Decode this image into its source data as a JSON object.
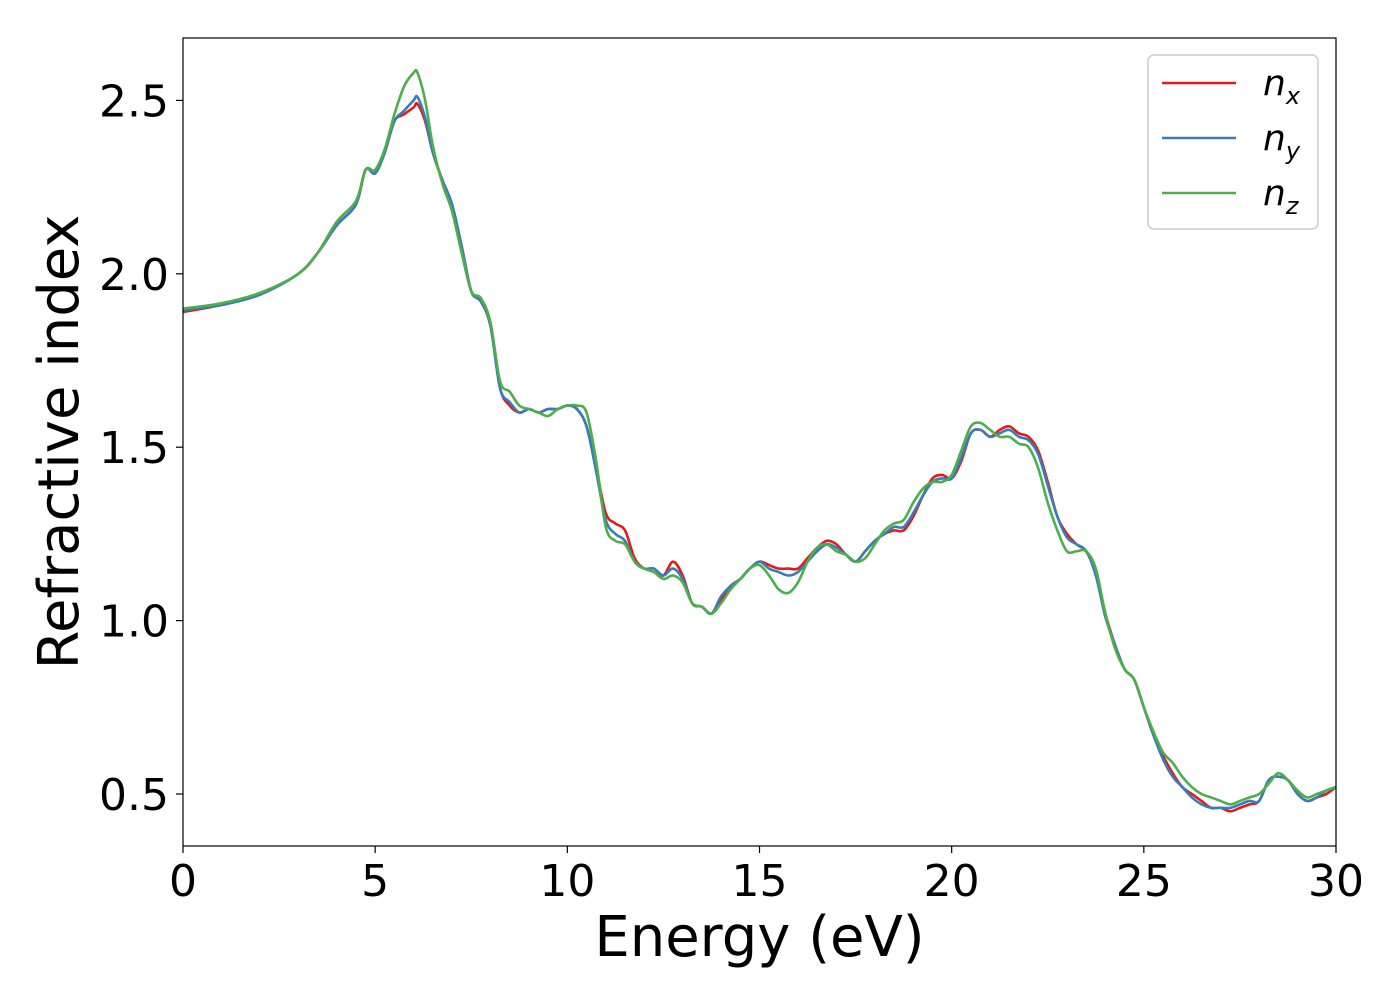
{
  "chart_data": {
    "type": "line",
    "xlabel": "Energy (eV)",
    "ylabel": "Refractive index",
    "xlim": [
      0,
      30
    ],
    "ylim": [
      0.35,
      2.68
    ],
    "xticks": [
      0,
      5,
      10,
      15,
      20,
      25,
      30
    ],
    "xtick_labels": [
      "0",
      "5",
      "10",
      "15",
      "20",
      "25",
      "30"
    ],
    "yticks": [
      0.5,
      1.0,
      1.5,
      2.0,
      2.5
    ],
    "ytick_labels": [
      "0.5",
      "1.0",
      "1.5",
      "2.0",
      "2.5"
    ],
    "grid": false,
    "legend_position": "top-right",
    "series": [
      {
        "name": "n_x",
        "legend_base": "n",
        "legend_sub": "x",
        "color": "#e41a1c",
        "x": [
          0,
          1,
          2,
          3,
          3.5,
          4,
          4.5,
          4.75,
          5,
          5.25,
          5.5,
          5.75,
          6,
          6.1,
          6.3,
          6.5,
          6.75,
          7,
          7.25,
          7.5,
          7.75,
          8,
          8.25,
          8.5,
          8.75,
          9,
          9.25,
          9.5,
          9.75,
          10,
          10.25,
          10.5,
          10.75,
          11,
          11.25,
          11.5,
          11.75,
          12,
          12.25,
          12.5,
          12.75,
          13,
          13.25,
          13.5,
          13.75,
          14,
          14.25,
          14.5,
          14.75,
          15,
          15.25,
          15.5,
          15.75,
          16,
          16.25,
          16.5,
          16.75,
          17,
          17.25,
          17.5,
          17.75,
          18,
          18.25,
          18.5,
          18.75,
          19,
          19.25,
          19.5,
          19.75,
          20,
          20.25,
          20.5,
          20.75,
          21,
          21.25,
          21.5,
          21.75,
          22,
          22.25,
          22.5,
          22.75,
          23,
          23.25,
          23.5,
          23.75,
          24,
          24.25,
          24.5,
          24.75,
          25,
          25.25,
          25.5,
          25.75,
          26,
          26.25,
          26.5,
          26.75,
          27,
          27.25,
          27.5,
          27.75,
          28,
          28.25,
          28.5,
          28.75,
          29,
          29.25,
          29.5,
          29.75,
          30
        ],
        "y": [
          1.89,
          1.91,
          1.94,
          2.0,
          2.06,
          2.14,
          2.2,
          2.3,
          2.29,
          2.35,
          2.44,
          2.46,
          2.48,
          2.49,
          2.44,
          2.35,
          2.27,
          2.2,
          2.08,
          1.95,
          1.92,
          1.85,
          1.67,
          1.62,
          1.6,
          1.61,
          1.6,
          1.61,
          1.61,
          1.62,
          1.61,
          1.56,
          1.44,
          1.31,
          1.28,
          1.26,
          1.18,
          1.15,
          1.15,
          1.13,
          1.17,
          1.13,
          1.05,
          1.04,
          1.02,
          1.06,
          1.1,
          1.12,
          1.15,
          1.17,
          1.16,
          1.15,
          1.15,
          1.15,
          1.18,
          1.21,
          1.23,
          1.22,
          1.19,
          1.17,
          1.2,
          1.23,
          1.25,
          1.26,
          1.26,
          1.3,
          1.36,
          1.41,
          1.42,
          1.41,
          1.46,
          1.54,
          1.55,
          1.53,
          1.55,
          1.56,
          1.54,
          1.53,
          1.49,
          1.4,
          1.3,
          1.25,
          1.22,
          1.2,
          1.14,
          1.02,
          0.93,
          0.86,
          0.83,
          0.75,
          0.67,
          0.61,
          0.56,
          0.52,
          0.5,
          0.48,
          0.46,
          0.46,
          0.45,
          0.46,
          0.47,
          0.48,
          0.54,
          0.55,
          0.54,
          0.5,
          0.48,
          0.49,
          0.5,
          0.52
        ]
      },
      {
        "name": "n_y",
        "legend_base": "n",
        "legend_sub": "y",
        "color": "#377eb8",
        "x": [
          0,
          1,
          2,
          3,
          3.5,
          4,
          4.5,
          4.75,
          5,
          5.25,
          5.5,
          5.75,
          6,
          6.1,
          6.3,
          6.5,
          6.75,
          7,
          7.25,
          7.5,
          7.75,
          8,
          8.25,
          8.5,
          8.75,
          9,
          9.25,
          9.5,
          9.75,
          10,
          10.25,
          10.5,
          10.75,
          11,
          11.25,
          11.5,
          11.75,
          12,
          12.25,
          12.5,
          12.75,
          13,
          13.25,
          13.5,
          13.75,
          14,
          14.25,
          14.5,
          14.75,
          15,
          15.25,
          15.5,
          15.75,
          16,
          16.25,
          16.5,
          16.75,
          17,
          17.25,
          17.5,
          17.75,
          18,
          18.25,
          18.5,
          18.75,
          19,
          19.25,
          19.5,
          19.75,
          20,
          20.25,
          20.5,
          20.75,
          21,
          21.25,
          21.5,
          21.75,
          22,
          22.25,
          22.5,
          22.75,
          23,
          23.25,
          23.5,
          23.75,
          24,
          24.25,
          24.5,
          24.75,
          25,
          25.25,
          25.5,
          25.75,
          26,
          26.25,
          26.5,
          26.75,
          27,
          27.25,
          27.5,
          27.75,
          28,
          28.25,
          28.5,
          28.75,
          29,
          29.25,
          29.5,
          29.75,
          30
        ],
        "y": [
          1.895,
          1.91,
          1.94,
          2.0,
          2.06,
          2.14,
          2.2,
          2.3,
          2.29,
          2.35,
          2.44,
          2.47,
          2.5,
          2.51,
          2.45,
          2.35,
          2.27,
          2.2,
          2.08,
          1.95,
          1.92,
          1.85,
          1.67,
          1.63,
          1.6,
          1.61,
          1.6,
          1.61,
          1.61,
          1.62,
          1.61,
          1.56,
          1.43,
          1.29,
          1.25,
          1.23,
          1.17,
          1.15,
          1.15,
          1.13,
          1.15,
          1.12,
          1.05,
          1.04,
          1.02,
          1.07,
          1.1,
          1.12,
          1.15,
          1.17,
          1.15,
          1.14,
          1.13,
          1.14,
          1.17,
          1.2,
          1.22,
          1.21,
          1.19,
          1.17,
          1.2,
          1.23,
          1.25,
          1.27,
          1.27,
          1.31,
          1.36,
          1.4,
          1.41,
          1.41,
          1.47,
          1.54,
          1.55,
          1.53,
          1.54,
          1.55,
          1.53,
          1.52,
          1.48,
          1.39,
          1.3,
          1.24,
          1.22,
          1.2,
          1.13,
          1.01,
          0.93,
          0.86,
          0.83,
          0.75,
          0.67,
          0.6,
          0.55,
          0.52,
          0.49,
          0.47,
          0.46,
          0.46,
          0.46,
          0.47,
          0.48,
          0.48,
          0.54,
          0.55,
          0.54,
          0.5,
          0.48,
          0.49,
          0.51,
          0.52
        ]
      },
      {
        "name": "n_z",
        "legend_base": "n",
        "legend_sub": "z",
        "color": "#4daf4a",
        "x": [
          0,
          1,
          2,
          3,
          3.5,
          4,
          4.5,
          4.75,
          5,
          5.25,
          5.5,
          5.75,
          6,
          6.1,
          6.3,
          6.5,
          6.75,
          7,
          7.25,
          7.5,
          7.75,
          8,
          8.25,
          8.5,
          8.75,
          9,
          9.25,
          9.5,
          9.75,
          10,
          10.25,
          10.5,
          10.75,
          11,
          11.25,
          11.5,
          11.75,
          12,
          12.25,
          12.5,
          12.75,
          13,
          13.25,
          13.5,
          13.75,
          14,
          14.25,
          14.5,
          14.75,
          15,
          15.25,
          15.5,
          15.75,
          16,
          16.25,
          16.5,
          16.75,
          17,
          17.25,
          17.5,
          17.75,
          18,
          18.25,
          18.5,
          18.75,
          19,
          19.25,
          19.5,
          19.75,
          20,
          20.25,
          20.5,
          20.75,
          21,
          21.25,
          21.5,
          21.75,
          22,
          22.25,
          22.5,
          22.75,
          23,
          23.25,
          23.5,
          23.75,
          24,
          24.25,
          24.5,
          24.75,
          25,
          25.25,
          25.5,
          25.75,
          26,
          26.25,
          26.5,
          26.75,
          27,
          27.25,
          27.5,
          27.75,
          28,
          28.25,
          28.5,
          28.75,
          29,
          29.25,
          29.5,
          29.75,
          30
        ],
        "y": [
          1.9,
          1.915,
          1.945,
          2.0,
          2.06,
          2.15,
          2.21,
          2.3,
          2.3,
          2.36,
          2.46,
          2.54,
          2.58,
          2.58,
          2.5,
          2.37,
          2.26,
          2.18,
          2.06,
          1.95,
          1.93,
          1.86,
          1.69,
          1.66,
          1.62,
          1.61,
          1.6,
          1.59,
          1.61,
          1.62,
          1.62,
          1.6,
          1.46,
          1.27,
          1.23,
          1.22,
          1.17,
          1.15,
          1.14,
          1.12,
          1.13,
          1.11,
          1.05,
          1.04,
          1.02,
          1.05,
          1.09,
          1.12,
          1.15,
          1.16,
          1.13,
          1.09,
          1.08,
          1.11,
          1.17,
          1.21,
          1.22,
          1.2,
          1.19,
          1.17,
          1.18,
          1.22,
          1.26,
          1.28,
          1.29,
          1.34,
          1.38,
          1.4,
          1.4,
          1.42,
          1.49,
          1.56,
          1.57,
          1.55,
          1.53,
          1.53,
          1.51,
          1.5,
          1.44,
          1.34,
          1.26,
          1.2,
          1.2,
          1.2,
          1.15,
          1.02,
          0.92,
          0.86,
          0.83,
          0.75,
          0.68,
          0.62,
          0.59,
          0.55,
          0.52,
          0.5,
          0.49,
          0.48,
          0.47,
          0.48,
          0.49,
          0.5,
          0.53,
          0.56,
          0.54,
          0.51,
          0.49,
          0.5,
          0.51,
          0.52
        ]
      }
    ]
  }
}
